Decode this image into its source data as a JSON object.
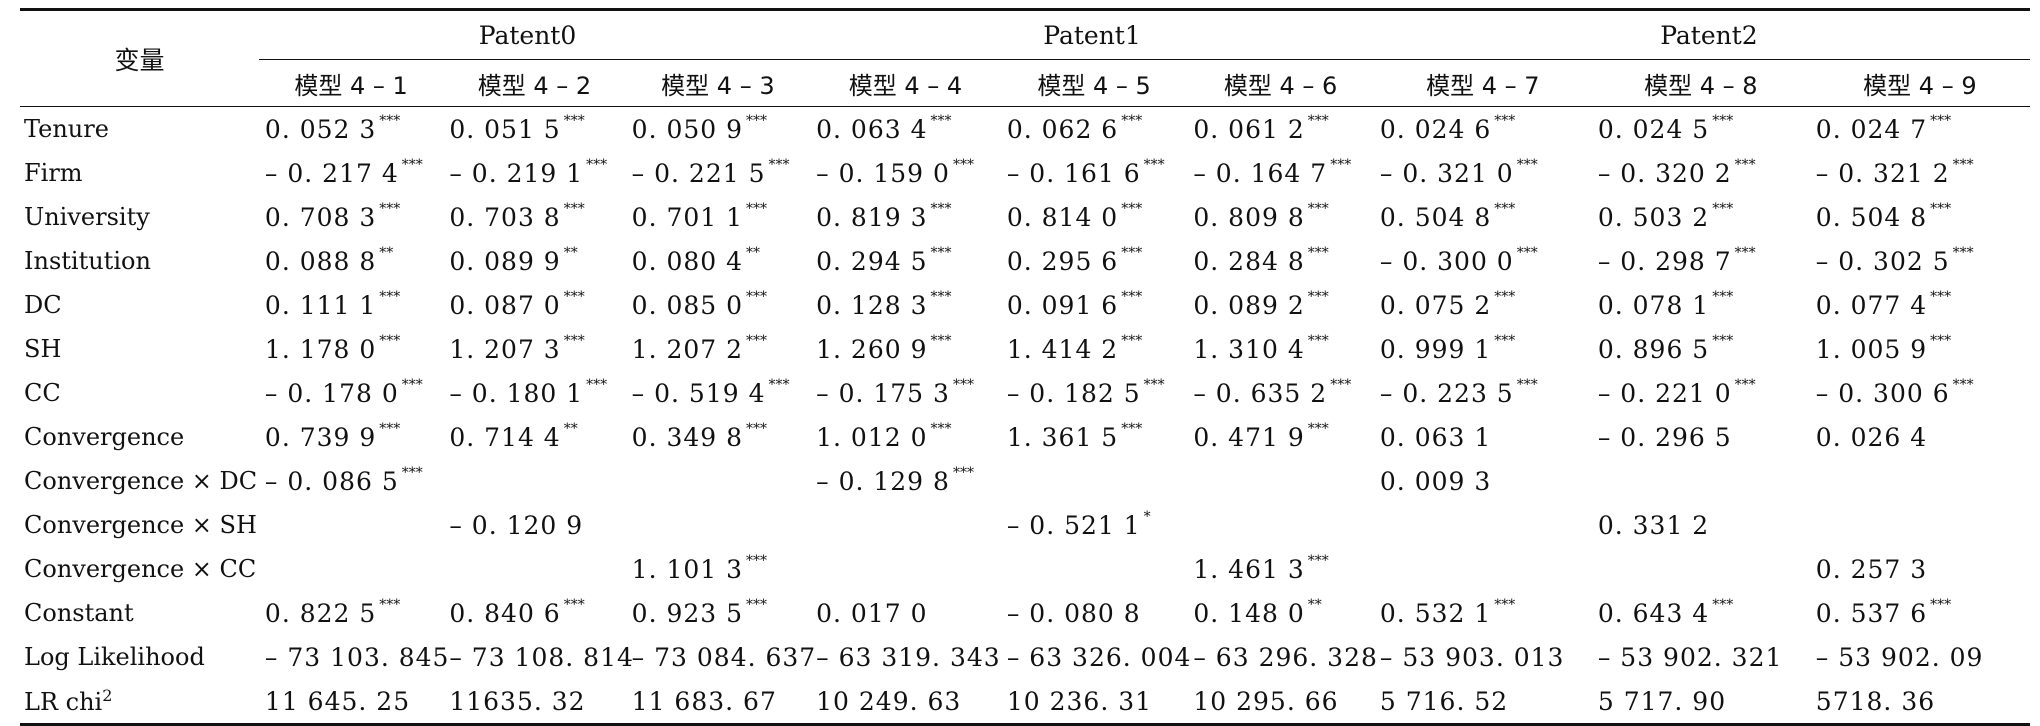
{
  "header": {
    "variable_label": "变量",
    "groups": [
      "Patent0",
      "Patent1",
      "Patent2"
    ],
    "models": [
      "模型 4 – 1",
      "模型 4 – 2",
      "模型 4 – 3",
      "模型 4 – 4",
      "模型 4 – 5",
      "模型 4 – 6",
      "模型 4 – 7",
      "模型 4 – 8",
      "模型 4 – 9"
    ]
  },
  "rows": [
    {
      "label": "Tenure",
      "cells": [
        {
          "v": "0. 052 3",
          "s": "***"
        },
        {
          "v": "0. 051 5",
          "s": "***"
        },
        {
          "v": "0. 050 9",
          "s": "***"
        },
        {
          "v": "0. 063 4",
          "s": "***"
        },
        {
          "v": "0. 062 6",
          "s": "***"
        },
        {
          "v": "0. 061 2",
          "s": "***"
        },
        {
          "v": "0. 024 6",
          "s": "***"
        },
        {
          "v": "0. 024 5",
          "s": "***"
        },
        {
          "v": "0. 024 7",
          "s": "***"
        }
      ]
    },
    {
      "label": "Firm",
      "cells": [
        {
          "v": "– 0. 217 4",
          "s": "***"
        },
        {
          "v": "– 0. 219 1",
          "s": "***"
        },
        {
          "v": "– 0. 221 5",
          "s": "***"
        },
        {
          "v": "– 0. 159 0",
          "s": "***"
        },
        {
          "v": "– 0. 161 6",
          "s": "***"
        },
        {
          "v": "– 0. 164 7",
          "s": "***"
        },
        {
          "v": "– 0. 321 0",
          "s": "***"
        },
        {
          "v": "– 0. 320 2",
          "s": "***"
        },
        {
          "v": "– 0. 321 2",
          "s": "***"
        }
      ]
    },
    {
      "label": "University",
      "cells": [
        {
          "v": "0. 708 3",
          "s": "***"
        },
        {
          "v": "0. 703 8",
          "s": "***"
        },
        {
          "v": "0. 701 1",
          "s": "***"
        },
        {
          "v": "0. 819 3",
          "s": "***"
        },
        {
          "v": "0. 814 0",
          "s": "***"
        },
        {
          "v": "0. 809 8",
          "s": "***"
        },
        {
          "v": "0. 504 8",
          "s": "***"
        },
        {
          "v": "0. 503 2",
          "s": "***"
        },
        {
          "v": "0. 504 8",
          "s": "***"
        }
      ]
    },
    {
      "label": "Institution",
      "cells": [
        {
          "v": "0. 088 8",
          "s": "**"
        },
        {
          "v": "0. 089 9",
          "s": "**"
        },
        {
          "v": "0. 080 4",
          "s": "**"
        },
        {
          "v": "0. 294 5",
          "s": "***"
        },
        {
          "v": "0. 295 6",
          "s": "***"
        },
        {
          "v": "0. 284 8",
          "s": "***"
        },
        {
          "v": "– 0. 300 0",
          "s": "***"
        },
        {
          "v": "– 0. 298 7",
          "s": "***"
        },
        {
          "v": "– 0. 302 5",
          "s": "***"
        }
      ]
    },
    {
      "label": "DC",
      "cells": [
        {
          "v": "0. 111 1",
          "s": "***"
        },
        {
          "v": "0. 087 0",
          "s": "***"
        },
        {
          "v": "0. 085 0",
          "s": "***"
        },
        {
          "v": "0. 128 3",
          "s": "***"
        },
        {
          "v": "0. 091 6",
          "s": "***"
        },
        {
          "v": "0. 089 2",
          "s": "***"
        },
        {
          "v": "0. 075 2",
          "s": "***"
        },
        {
          "v": "0. 078 1",
          "s": "***"
        },
        {
          "v": "0. 077 4",
          "s": "***"
        }
      ]
    },
    {
      "label": "SH",
      "cells": [
        {
          "v": "1. 178 0",
          "s": "***"
        },
        {
          "v": "1. 207 3",
          "s": "***"
        },
        {
          "v": "1. 207 2",
          "s": "***"
        },
        {
          "v": "1. 260 9",
          "s": "***"
        },
        {
          "v": "1. 414 2",
          "s": "***"
        },
        {
          "v": "1. 310 4",
          "s": "***"
        },
        {
          "v": "0. 999 1",
          "s": "***"
        },
        {
          "v": "0. 896 5",
          "s": "***"
        },
        {
          "v": "1. 005 9",
          "s": "***"
        }
      ]
    },
    {
      "label": "CC",
      "cells": [
        {
          "v": "– 0. 178 0",
          "s": "***"
        },
        {
          "v": "– 0. 180 1",
          "s": "***"
        },
        {
          "v": "– 0. 519 4",
          "s": "***"
        },
        {
          "v": "– 0. 175 3",
          "s": "***"
        },
        {
          "v": "– 0. 182 5",
          "s": "***"
        },
        {
          "v": "– 0. 635 2",
          "s": "***"
        },
        {
          "v": "– 0. 223 5",
          "s": "***"
        },
        {
          "v": "– 0. 221 0",
          "s": "***"
        },
        {
          "v": "– 0. 300 6",
          "s": "***"
        }
      ]
    },
    {
      "label": "Convergence",
      "cells": [
        {
          "v": "0. 739 9",
          "s": "***"
        },
        {
          "v": "0. 714 4",
          "s": "**"
        },
        {
          "v": "0. 349 8",
          "s": "***"
        },
        {
          "v": "1. 012 0",
          "s": "***"
        },
        {
          "v": "1. 361 5",
          "s": "***"
        },
        {
          "v": "0. 471 9",
          "s": "***"
        },
        {
          "v": "0. 063 1",
          "s": ""
        },
        {
          "v": "– 0. 296 5",
          "s": ""
        },
        {
          "v": "0. 026 4",
          "s": ""
        }
      ]
    },
    {
      "label": "Convergence × DC",
      "cells": [
        {
          "v": "– 0. 086 5",
          "s": "***"
        },
        {
          "v": "",
          "s": ""
        },
        {
          "v": "",
          "s": ""
        },
        {
          "v": "– 0. 129 8",
          "s": "***"
        },
        {
          "v": "",
          "s": ""
        },
        {
          "v": "",
          "s": ""
        },
        {
          "v": "0. 009 3",
          "s": ""
        },
        {
          "v": "",
          "s": ""
        },
        {
          "v": "",
          "s": ""
        }
      ]
    },
    {
      "label": "Convergence × SH",
      "cells": [
        {
          "v": "",
          "s": ""
        },
        {
          "v": "– 0. 120 9",
          "s": ""
        },
        {
          "v": "",
          "s": ""
        },
        {
          "v": "",
          "s": ""
        },
        {
          "v": "– 0. 521 1",
          "s": "*"
        },
        {
          "v": "",
          "s": ""
        },
        {
          "v": "",
          "s": ""
        },
        {
          "v": "0. 331 2",
          "s": ""
        },
        {
          "v": "",
          "s": ""
        }
      ]
    },
    {
      "label": "Convergence × CC",
      "cells": [
        {
          "v": "",
          "s": ""
        },
        {
          "v": "",
          "s": ""
        },
        {
          "v": "1. 101 3",
          "s": "***"
        },
        {
          "v": "",
          "s": ""
        },
        {
          "v": "",
          "s": ""
        },
        {
          "v": "1. 461 3",
          "s": "***"
        },
        {
          "v": "",
          "s": ""
        },
        {
          "v": "",
          "s": ""
        },
        {
          "v": "0. 257 3",
          "s": ""
        }
      ]
    },
    {
      "label": "Constant",
      "cells": [
        {
          "v": "0. 822 5",
          "s": "***"
        },
        {
          "v": "0. 840 6",
          "s": "***"
        },
        {
          "v": "0. 923 5",
          "s": "***"
        },
        {
          "v": "0. 017 0",
          "s": ""
        },
        {
          "v": "– 0. 080 8",
          "s": ""
        },
        {
          "v": "0. 148 0",
          "s": "**"
        },
        {
          "v": "0. 532 1",
          "s": "***"
        },
        {
          "v": "0. 643 4",
          "s": "***"
        },
        {
          "v": "0. 537 6",
          "s": "***"
        }
      ]
    },
    {
      "label": "Log Likelihood",
      "cells": [
        {
          "v": "– 73 103. 845",
          "s": ""
        },
        {
          "v": "– 73 108. 814",
          "s": ""
        },
        {
          "v": "– 73 084. 637",
          "s": ""
        },
        {
          "v": "– 63 319. 343",
          "s": ""
        },
        {
          "v": "– 63 326. 004",
          "s": ""
        },
        {
          "v": "– 63 296. 328",
          "s": ""
        },
        {
          "v": "– 53 903. 013",
          "s": ""
        },
        {
          "v": "– 53 902. 321",
          "s": ""
        },
        {
          "v": "– 53 902. 09",
          "s": ""
        }
      ]
    },
    {
      "label": "LR chi",
      "sup": "2",
      "cells": [
        {
          "v": "11 645. 25",
          "s": ""
        },
        {
          "v": "11635. 32",
          "s": ""
        },
        {
          "v": "11 683. 67",
          "s": ""
        },
        {
          "v": "10 249. 63",
          "s": ""
        },
        {
          "v": "10 236. 31",
          "s": ""
        },
        {
          "v": "10 295. 66",
          "s": ""
        },
        {
          "v": "5 716. 52",
          "s": ""
        },
        {
          "v": "5 717. 90",
          "s": ""
        },
        {
          "v": "5718. 36",
          "s": ""
        }
      ]
    }
  ]
}
